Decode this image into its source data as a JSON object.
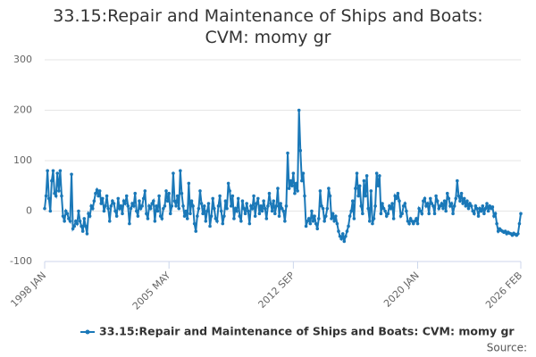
{
  "chart_data": {
    "type": "line",
    "title": "33.15:Repair and Maintenance of Ships and Boats: CVM: momy gr",
    "source_label": "Source:",
    "categories": [
      "1998 JAN",
      null,
      null,
      null,
      null,
      null,
      null,
      null,
      null,
      null,
      null,
      null,
      null,
      null,
      null,
      null,
      null,
      null,
      null,
      null,
      null,
      null,
      null,
      null,
      null,
      null,
      null,
      null,
      null,
      null,
      null,
      null,
      null,
      null,
      null,
      null,
      null,
      null,
      null,
      null,
      null,
      null,
      null,
      null,
      null,
      null,
      null,
      null,
      null,
      null,
      null,
      null,
      null,
      null,
      null,
      null,
      null,
      null,
      null,
      null,
      null,
      null,
      null,
      null,
      null,
      null,
      null,
      null,
      null,
      null,
      null,
      null,
      null,
      null,
      null,
      null,
      null,
      null,
      null,
      null,
      null,
      null,
      null,
      null,
      null,
      null,
      null,
      null,
      "2005 MAY",
      null,
      null,
      null,
      null,
      null,
      null,
      null,
      null,
      null,
      null,
      null,
      null,
      null,
      null,
      null,
      null,
      null,
      null,
      null,
      null,
      null,
      null,
      null,
      null,
      null,
      null,
      null,
      null,
      null,
      null,
      null,
      null,
      null,
      null,
      null,
      null,
      null,
      null,
      null,
      null,
      null,
      null,
      null,
      null,
      null,
      null,
      null,
      null,
      null,
      null,
      null,
      null,
      null,
      null,
      null,
      null,
      null,
      null,
      null,
      null,
      null,
      null,
      null,
      null,
      null,
      null,
      null,
      null,
      null,
      null,
      null,
      null,
      null,
      null,
      null,
      null,
      null,
      null,
      null,
      null,
      null,
      null,
      null,
      null,
      null,
      null,
      null,
      "2012 SEP",
      null,
      null,
      null,
      null,
      null,
      null,
      null,
      null,
      null,
      null,
      null,
      null,
      null,
      null,
      null,
      null,
      null,
      null,
      null,
      null,
      null,
      null,
      null,
      null,
      null,
      null,
      null,
      null,
      null,
      null,
      null,
      null,
      null,
      null,
      null,
      null,
      null,
      null,
      null,
      null,
      null,
      null,
      null,
      null,
      null,
      null,
      null,
      null,
      null,
      null,
      null,
      null,
      null,
      null,
      null,
      null,
      null,
      null,
      null,
      null,
      null,
      null,
      null,
      null,
      null,
      null,
      null,
      null,
      null,
      null,
      null,
      null,
      null,
      null,
      null,
      null,
      null,
      null,
      null,
      null,
      null,
      null,
      null,
      null,
      null,
      null,
      null,
      "2020 JAN",
      null,
      null,
      null,
      null,
      null,
      null,
      null,
      null,
      null,
      null,
      null,
      null,
      null,
      null,
      null,
      null,
      null,
      null,
      null,
      null,
      null,
      null,
      null,
      null,
      null,
      null,
      null,
      null,
      null,
      null,
      null,
      null,
      null,
      null,
      null,
      null,
      null,
      null,
      null,
      null,
      null,
      null,
      null,
      null,
      null,
      null,
      null,
      null,
      null,
      null,
      null,
      null,
      null,
      null,
      null,
      null,
      null,
      null,
      null,
      null,
      null,
      null,
      null,
      null,
      null,
      null,
      null,
      null,
      null,
      null,
      null,
      null,
      "2026 FEB"
    ],
    "series": [
      {
        "name": "33.15:Repair and Maintenance of Ships and Boats: CVM: momy gr",
        "color": "#1a78b8",
        "values": [
          5,
          30,
          80,
          25,
          0,
          60,
          80,
          35,
          30,
          75,
          40,
          80,
          30,
          -10,
          -20,
          0,
          -5,
          -15,
          -20,
          73,
          -35,
          -30,
          -20,
          -25,
          0,
          -20,
          -30,
          -40,
          -15,
          -30,
          -45,
          -5,
          -10,
          10,
          5,
          20,
          35,
          42,
          30,
          40,
          15,
          25,
          0,
          10,
          30,
          5,
          -20,
          10,
          20,
          15,
          0,
          -10,
          25,
          5,
          10,
          -5,
          20,
          15,
          30,
          10,
          -25,
          5,
          15,
          10,
          35,
          0,
          -10,
          20,
          5,
          10,
          25,
          40,
          -5,
          -15,
          10,
          5,
          15,
          20,
          -20,
          10,
          0,
          30,
          -10,
          -15,
          5,
          10,
          40,
          20,
          35,
          -5,
          10,
          75,
          20,
          10,
          30,
          5,
          80,
          35,
          10,
          -10,
          0,
          -15,
          55,
          -5,
          20,
          10,
          -25,
          -40,
          -10,
          5,
          40,
          15,
          -5,
          10,
          -20,
          0,
          15,
          -30,
          -10,
          25,
          5,
          -15,
          -20,
          10,
          30,
          0,
          -25,
          -10,
          20,
          5,
          55,
          40,
          10,
          30,
          -15,
          5,
          0,
          25,
          -10,
          -20,
          20,
          5,
          -5,
          15,
          0,
          -25,
          10,
          5,
          30,
          -10,
          15,
          25,
          -5,
          10,
          0,
          20,
          5,
          -15,
          10,
          35,
          15,
          0,
          20,
          -5,
          10,
          45,
          -10,
          15,
          5,
          0,
          -20,
          10,
          115,
          45,
          60,
          50,
          75,
          35,
          55,
          40,
          200,
          120,
          60,
          75,
          30,
          -30,
          -20,
          -15,
          -25,
          0,
          -20,
          -10,
          -25,
          -35,
          -15,
          40,
          10,
          5,
          -20,
          -10,
          5,
          45,
          30,
          -15,
          -5,
          -20,
          -10,
          -25,
          -40,
          -50,
          -55,
          -45,
          -60,
          -50,
          -40,
          -30,
          -10,
          0,
          20,
          -15,
          45,
          75,
          30,
          50,
          10,
          -5,
          60,
          30,
          70,
          5,
          -20,
          40,
          -25,
          -15,
          10,
          75,
          50,
          70,
          -5,
          15,
          5,
          0,
          -10,
          -5,
          10,
          5,
          15,
          -15,
          30,
          25,
          35,
          20,
          -10,
          -5,
          10,
          15,
          0,
          -20,
          -25,
          -15,
          -20,
          -25,
          -20,
          -15,
          -25,
          5,
          0,
          -5,
          20,
          25,
          10,
          15,
          -5,
          25,
          15,
          10,
          -5,
          30,
          20,
          5,
          10,
          15,
          5,
          20,
          0,
          35,
          25,
          10,
          15,
          -5,
          10,
          25,
          60,
          30,
          20,
          35,
          15,
          25,
          10,
          20,
          5,
          15,
          10,
          0,
          -5,
          10,
          5,
          -10,
          5,
          0,
          10,
          -5,
          5,
          15,
          0,
          10,
          5,
          8,
          -10,
          -5,
          -25,
          -40,
          -35,
          -38,
          -40,
          -42,
          -40,
          -45,
          -42,
          -44,
          -45,
          -48,
          -44,
          -46,
          -48,
          -45,
          -25,
          -5
        ]
      }
    ],
    "ylim": [
      -100,
      300
    ],
    "yticks": [
      -100,
      0,
      100,
      200,
      300
    ],
    "grid": true
  }
}
